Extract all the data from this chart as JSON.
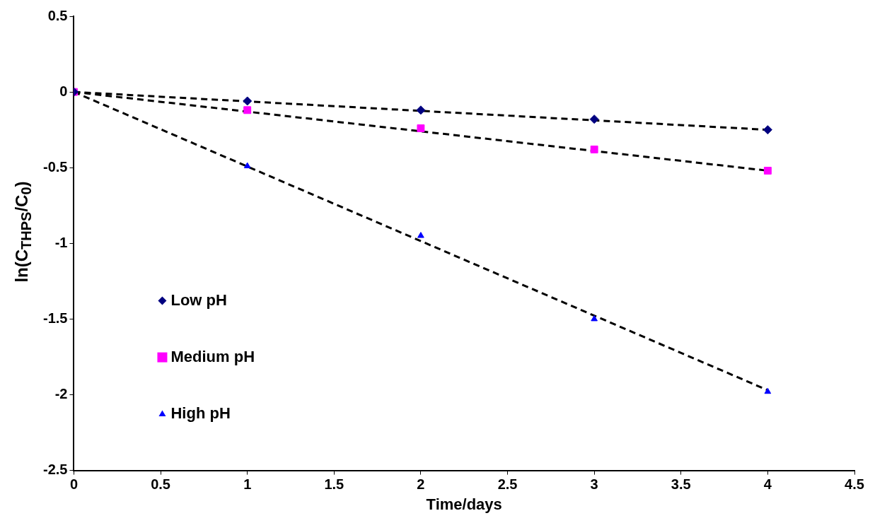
{
  "chart_data": {
    "type": "scatter",
    "xlabel": "Time/days",
    "ylabel": "ln(C$_{THPS}$/C$_{0}$)",
    "xlim": [
      0,
      4.5
    ],
    "xticks": [
      0,
      0.5,
      1,
      1.5,
      2,
      2.5,
      3,
      3.5,
      4,
      4.5
    ],
    "ylim": [
      -2.5,
      0.5
    ],
    "yticks": [
      -2.5,
      -2,
      -1.5,
      -1,
      -0.5,
      0,
      0.5
    ],
    "legend": "bottom left",
    "series": [
      {
        "name": "Low pH",
        "color": "#000080",
        "marker": "diamond",
        "x": [
          0,
          1,
          2,
          3,
          4
        ],
        "values": [
          0,
          -0.06,
          -0.12,
          -0.18,
          -0.25
        ]
      },
      {
        "name": "Medium pH",
        "color": "#ff00ff",
        "marker": "square",
        "x": [
          0,
          1,
          2,
          3,
          4
        ],
        "values": [
          0,
          -0.12,
          -0.24,
          -0.38,
          -0.52
        ]
      },
      {
        "name": "High pH",
        "color": "#0000ff",
        "marker": "triangle",
        "x": [
          0,
          1,
          2,
          3,
          4
        ],
        "values": [
          0,
          -0.49,
          -0.95,
          -1.5,
          -1.98
        ]
      },
      {
        "type": "line",
        "color": "#000000",
        "line_style": "dashed",
        "marker": "none",
        "x": [
          0,
          4
        ],
        "values": [
          0,
          -0.25
        ]
      },
      {
        "type": "line",
        "color": "#000000",
        "line_style": "dashed",
        "marker": "none",
        "x": [
          0,
          4
        ],
        "values": [
          0,
          -0.52
        ]
      },
      {
        "type": "line",
        "color": "#000000",
        "line_style": "dashed",
        "marker": "none",
        "x": [
          0,
          4
        ],
        "values": [
          0,
          -1.97
        ]
      }
    ]
  }
}
